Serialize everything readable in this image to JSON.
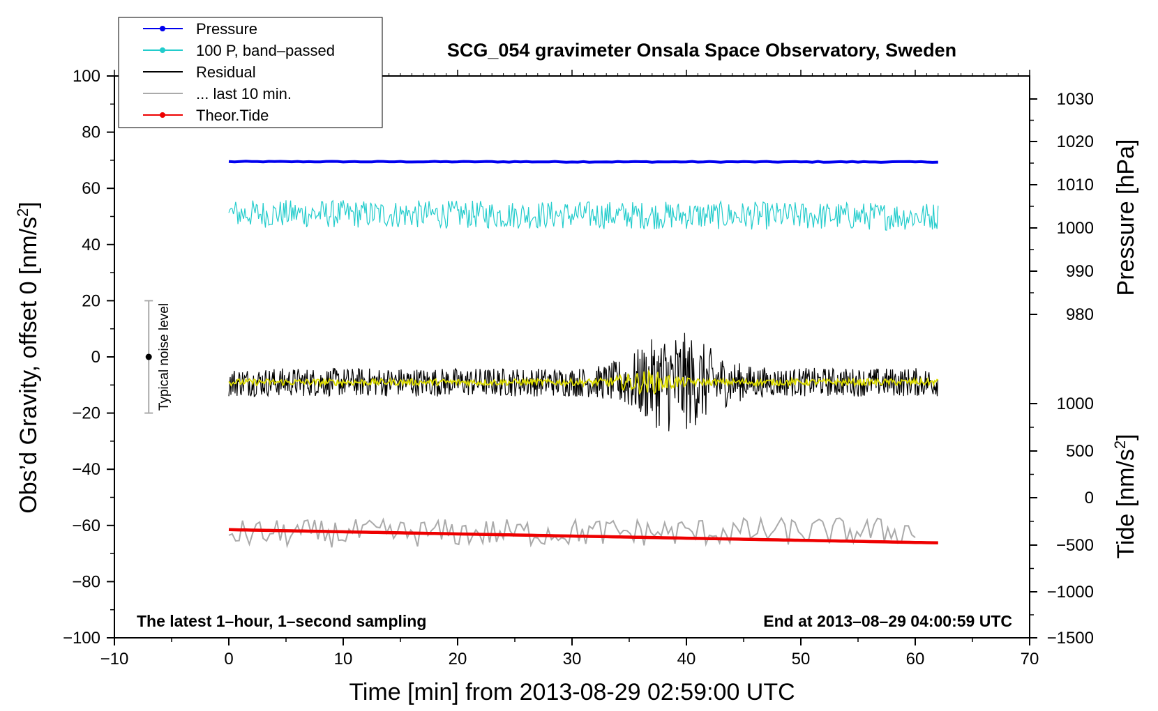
{
  "chart_data": {
    "type": "line",
    "title": "SCG_054 gravimeter Onsala Space Observatory, Sweden",
    "xlabel": "Time [min] from 2013-08-29 02:59:00 UTC",
    "ylabel": "Obs’d Gravity, offset 0 [nm/s²]",
    "right_axes": [
      {
        "label": "Pressure [hPa]",
        "ticks": [
          "1030",
          "1020",
          "1010",
          "1000",
          "990",
          "980"
        ]
      },
      {
        "label": "Tide [nm/s²]",
        "ticks": [
          "1000",
          "500",
          "0",
          "−500",
          "−1000",
          "−1500"
        ]
      }
    ],
    "xlim": [
      -10,
      70
    ],
    "ylim": [
      -100,
      100
    ],
    "x_ticks": [
      "−10",
      "0",
      "10",
      "20",
      "30",
      "40",
      "50",
      "60",
      "70"
    ],
    "y_ticks": [
      "100",
      "80",
      "60",
      "40",
      "20",
      "0",
      "−20",
      "−40",
      "−60",
      "−80",
      "−100"
    ],
    "series": [
      {
        "name": "Pressure",
        "color": "#0000ee",
        "x": [
          0,
          62
        ],
        "y": [
          69.5,
          69.4
        ]
      },
      {
        "name": "100 P, band–passed",
        "color": "#22cccc",
        "x": [
          0,
          62
        ],
        "y": [
          51,
          50
        ],
        "noise_amplitude": 5
      },
      {
        "name": "Residual",
        "color": "#000000",
        "x": [
          0,
          62
        ],
        "y": [
          -9,
          -9
        ],
        "noise_amplitude": 6
      },
      {
        "name": "... last 10 min.",
        "color": "#aaaaaa",
        "x": [
          0,
          60
        ],
        "y": [
          -63,
          -62
        ],
        "noise_amplitude": 5
      },
      {
        "name": "Theor.Tide",
        "color": "#ee0000",
        "x": [
          0,
          62
        ],
        "y": [
          -61.5,
          -66.2
        ]
      }
    ],
    "smoothed_residual": {
      "color": "#dddd00",
      "x": [
        0,
        62
      ],
      "y": [
        -9,
        -9
      ]
    },
    "noise_bar": {
      "label": "Typical noise level",
      "x": -7,
      "y": 0,
      "low": -20,
      "high": 20
    },
    "annotations": {
      "left": "The latest 1–hour, 1–second sampling",
      "right": "End at 2013–08–29 04:00:59 UTC"
    },
    "legend_placement": "top-left",
    "grid": false
  }
}
